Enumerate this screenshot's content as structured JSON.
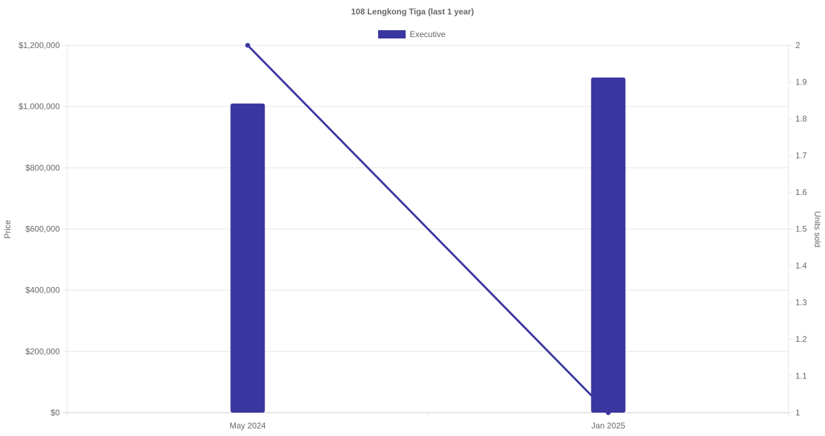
{
  "chart_data": {
    "type": "bar",
    "title": "108 Lengkong Tiga (last 1 year)",
    "categories": [
      "May 2024",
      "Jan 2025"
    ],
    "series": [
      {
        "name": "Executive",
        "type": "bar",
        "axis": "left",
        "values": [
          1010000,
          1095000
        ]
      },
      {
        "type": "line",
        "axis": "right",
        "values": [
          2,
          1
        ]
      }
    ],
    "ylabel": "Price",
    "y2label": "Units sold",
    "ylim": [
      0,
      1200000
    ],
    "y2lim": [
      1,
      2
    ],
    "yticks": [
      "$0",
      "$200,000",
      "$400,000",
      "$600,000",
      "$800,000",
      "$1,000,000",
      "$1,200,000"
    ],
    "y2ticks": [
      "1",
      "1.1",
      "1.2",
      "1.3",
      "1.4",
      "1.5",
      "1.6",
      "1.7",
      "1.8",
      "1.9",
      "2"
    ],
    "grid": true,
    "legend": "top",
    "color": "#3a36a0"
  }
}
